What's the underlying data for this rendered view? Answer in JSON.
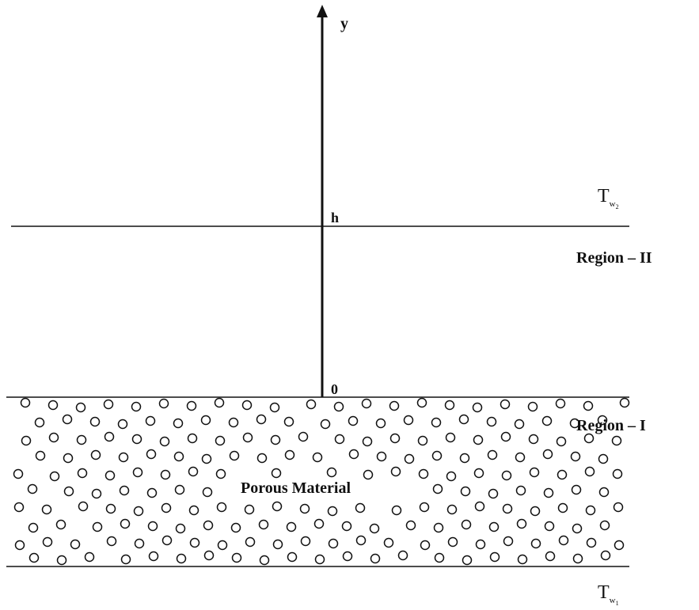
{
  "axis": {
    "y_label": "y",
    "h_label": "h",
    "zero_label": "0"
  },
  "regions": {
    "upper": "Region – II",
    "lower": "Region – I",
    "material": "Porous Material"
  },
  "walls": {
    "top": {
      "symbol": "T",
      "sub": "w",
      "index": "2"
    },
    "bottom": {
      "symbol": "T",
      "sub": "w",
      "index": "1"
    }
  },
  "colors": {
    "ink": "#111111",
    "background": "#ffffff"
  }
}
